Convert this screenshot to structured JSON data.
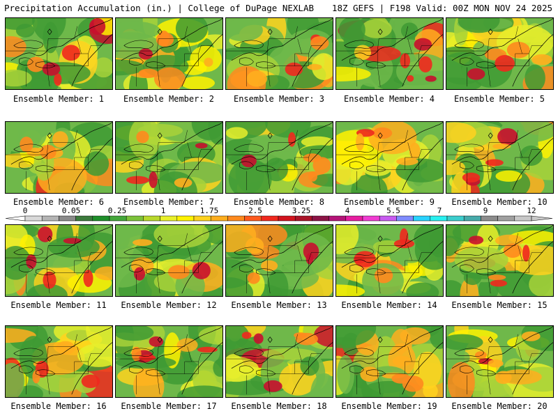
{
  "header": {
    "title": "Precipitation Accumulation (in.) | College of DuPage NEXLAB",
    "run": "18Z GEFS | F198 Valid: 00Z MON NOV 24 2025"
  },
  "colorbar": {
    "labels": [
      "0",
      "0.05",
      "0.25",
      "1",
      "1.75",
      "2.5",
      "3.25",
      "4",
      "5.5",
      "7",
      "9",
      "12"
    ],
    "colors": [
      "#d9d9d9",
      "#b4b4b4",
      "#8a8a8a",
      "#3c7a3c",
      "#1f8f2a",
      "#43a63a",
      "#7cc23a",
      "#b8d82c",
      "#e9f02a",
      "#fff200",
      "#ffd21e",
      "#ffae1e",
      "#ff8a1e",
      "#ff5a1e",
      "#f0281e",
      "#d2141e",
      "#aa1428",
      "#8c1446",
      "#b41478",
      "#e61ea0",
      "#f03cd2",
      "#c85af0",
      "#7f8cff",
      "#28d2ff",
      "#28f0f0",
      "#3ccdcd",
      "#46aaaa",
      "#8c8c8c",
      "#a0a0a0",
      "#c8c8c8"
    ]
  },
  "panels": [
    {
      "label": "Ensemble Member: 1"
    },
    {
      "label": "Ensemble Member: 2"
    },
    {
      "label": "Ensemble Member: 3"
    },
    {
      "label": "Ensemble Member: 4"
    },
    {
      "label": "Ensemble Member: 5"
    },
    {
      "label": "Ensemble Member: 6"
    },
    {
      "label": "Ensemble Member: 7"
    },
    {
      "label": "Ensemble Member: 8"
    },
    {
      "label": "Ensemble Member: 9"
    },
    {
      "label": "Ensemble Member: 10"
    },
    {
      "label": "Ensemble Member: 11"
    },
    {
      "label": "Ensemble Member: 12"
    },
    {
      "label": "Ensemble Member: 13"
    },
    {
      "label": "Ensemble Member: 14"
    },
    {
      "label": "Ensemble Member: 15"
    },
    {
      "label": "Ensemble Member: 16"
    },
    {
      "label": "Ensemble Member: 17"
    },
    {
      "label": "Ensemble Member: 18"
    },
    {
      "label": "Ensemble Member: 19"
    },
    {
      "label": "Ensemble Member: 20"
    }
  ]
}
